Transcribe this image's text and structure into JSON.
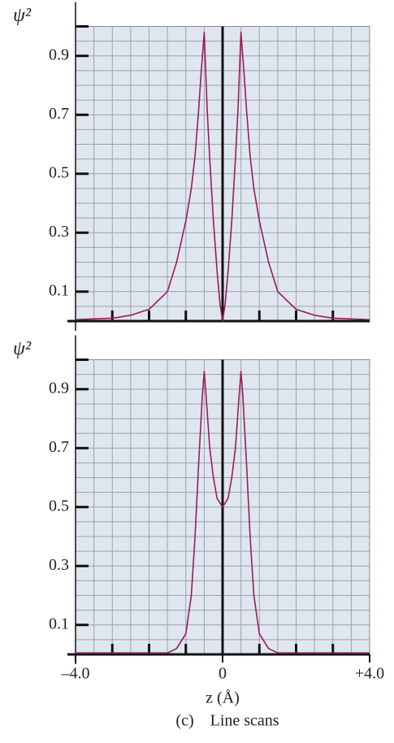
{
  "chart_data": [
    {
      "type": "line",
      "ylabel": "ψ²",
      "xlim": [
        -4,
        4
      ],
      "ylim": [
        0,
        1
      ],
      "yticks": [
        0.1,
        0.3,
        0.5,
        0.7,
        0.9
      ],
      "grid": true,
      "series": [
        {
          "color": "#9b1b5e",
          "x": [
            -4,
            -3,
            -2.5,
            -2,
            -1.5,
            -1.25,
            -1,
            -0.85,
            -0.75,
            -0.65,
            -0.58,
            -0.5,
            -0.42,
            -0.35,
            -0.25,
            -0.15,
            -0.07,
            0,
            0.07,
            0.15,
            0.25,
            0.35,
            0.42,
            0.5,
            0.58,
            0.65,
            0.75,
            0.85,
            1,
            1.25,
            1.5,
            2,
            2.5,
            3,
            4
          ],
          "values": [
            0.005,
            0.01,
            0.02,
            0.04,
            0.1,
            0.2,
            0.34,
            0.45,
            0.56,
            0.72,
            0.85,
            0.98,
            0.72,
            0.55,
            0.34,
            0.17,
            0.06,
            0,
            0.06,
            0.17,
            0.34,
            0.55,
            0.72,
            0.98,
            0.85,
            0.72,
            0.56,
            0.45,
            0.34,
            0.2,
            0.1,
            0.04,
            0.02,
            0.01,
            0.005
          ]
        }
      ]
    },
    {
      "type": "line",
      "ylabel": "ψ²",
      "xlabel": "z (Å)",
      "xlim": [
        -4,
        4
      ],
      "ylim": [
        0,
        1
      ],
      "yticks": [
        0.1,
        0.3,
        0.5,
        0.7,
        0.9
      ],
      "grid": true,
      "xticks": [
        {
          "value": -4,
          "label": "–4.0"
        },
        0,
        {
          "value": 4,
          "label": "+4.0"
        }
      ],
      "series": [
        {
          "color": "#9b1b5e",
          "x": [
            -4,
            -2,
            -1.5,
            -1.25,
            -1,
            -0.85,
            -0.75,
            -0.65,
            -0.55,
            -0.5,
            -0.45,
            -0.35,
            -0.25,
            -0.15,
            0,
            0.15,
            0.25,
            0.35,
            0.45,
            0.5,
            0.55,
            0.65,
            0.75,
            0.85,
            1,
            1.25,
            1.5,
            2,
            4
          ],
          "values": [
            0.005,
            0.005,
            0.005,
            0.02,
            0.07,
            0.2,
            0.4,
            0.65,
            0.88,
            0.96,
            0.88,
            0.7,
            0.6,
            0.53,
            0.5,
            0.53,
            0.6,
            0.7,
            0.88,
            0.96,
            0.88,
            0.65,
            0.4,
            0.2,
            0.07,
            0.02,
            0.005,
            0.005,
            0.005
          ]
        }
      ]
    }
  ],
  "caption": "(c)    Line scans"
}
